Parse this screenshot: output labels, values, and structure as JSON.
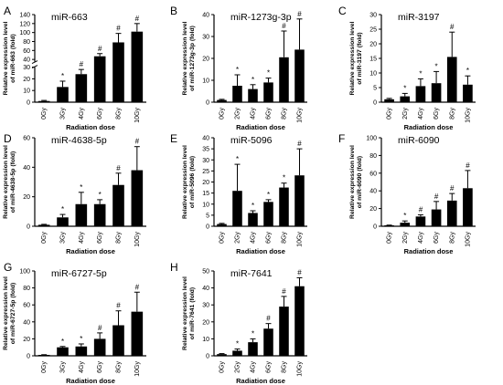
{
  "chart_data": [
    {
      "type": "bar",
      "panel_letter": "A",
      "title": "miR-663",
      "ylabel": "Relative expression level of miR-663 (fold)",
      "xlabel": "Radiation dose",
      "categories": [
        "0Gy",
        "3Gy",
        "4Gy",
        "6Gy",
        "8Gy",
        "10Gy"
      ],
      "values": [
        1,
        13,
        24,
        47,
        78,
        102
      ],
      "errors": [
        0.5,
        5,
        4,
        6,
        20,
        18
      ],
      "markers": [
        "",
        "*",
        "#",
        "#",
        "#",
        "#"
      ],
      "y_axis_break": true,
      "yticks_lower": [
        "0",
        "10",
        "20",
        "30"
      ],
      "yticks_upper": [
        "40",
        "60",
        "80",
        "100",
        "120",
        "140"
      ],
      "ylim_lower": [
        0,
        30
      ],
      "ylim_upper": [
        35,
        140
      ]
    },
    {
      "type": "bar",
      "panel_letter": "B",
      "title": "miR-1273g-3p",
      "ylabel": "Relative expression level of miR-1273g-3p (fold)",
      "xlabel": "Radiation dose",
      "categories": [
        "0Gy",
        "2Gy",
        "4Gy",
        "6Gy",
        "8Gy",
        "10Gy"
      ],
      "values": [
        1,
        7.5,
        6,
        9,
        20.5,
        24
      ],
      "errors": [
        0.3,
        5,
        2,
        2,
        12,
        14
      ],
      "markers": [
        "",
        "*",
        "*",
        "*",
        "#",
        "#"
      ],
      "yticks": [
        "0",
        "10",
        "20",
        "30",
        "40"
      ],
      "ylim": [
        0,
        40
      ]
    },
    {
      "type": "bar",
      "panel_letter": "C",
      "title": "miR-3197",
      "ylabel": "Relative expression level of miR-3197 (fold)",
      "xlabel": "Radiation dose",
      "categories": [
        "0Gy",
        "2Gy",
        "4Gy",
        "6Gy",
        "8Gy",
        "10Gy"
      ],
      "values": [
        1,
        2,
        5.5,
        6.5,
        15.5,
        6
      ],
      "errors": [
        0.3,
        1,
        2.5,
        4,
        8.5,
        3
      ],
      "markers": [
        "",
        "*",
        "*",
        "*",
        "#",
        "*"
      ],
      "yticks": [
        "0",
        "5",
        "10",
        "15",
        "20",
        "25",
        "30"
      ],
      "ylim": [
        0,
        30
      ]
    },
    {
      "type": "bar",
      "panel_letter": "D",
      "title": "miR-4638-5p",
      "ylabel": "Relative expression level of miR-4638-5p (fold)",
      "xlabel": "Radiation dose",
      "categories": [
        "0Gy",
        "3Gy",
        "4Gy",
        "6Gy",
        "8Gy",
        "10Gy"
      ],
      "values": [
        1,
        6,
        15,
        15,
        28,
        38
      ],
      "errors": [
        0.3,
        2,
        8,
        3,
        8,
        16
      ],
      "markers": [
        "",
        "*",
        "*",
        "*",
        "#",
        "#"
      ],
      "yticks": [
        "0",
        "20",
        "40",
        "60"
      ],
      "ylim": [
        0,
        60
      ]
    },
    {
      "type": "bar",
      "panel_letter": "E",
      "title": "miR-5096",
      "ylabel": "Relative expression level of miR-5096 (fold)",
      "xlabel": "Radiation dose",
      "categories": [
        "0Gy",
        "2Gy",
        "4Gy",
        "6Gy",
        "8Gy",
        "10Gy"
      ],
      "values": [
        1,
        16,
        6,
        11,
        17.5,
        23
      ],
      "errors": [
        0.3,
        12,
        1,
        1,
        2,
        12
      ],
      "markers": [
        "",
        "*",
        "*",
        "*",
        "*",
        "#"
      ],
      "yticks": [
        "0",
        "5",
        "10",
        "15",
        "20",
        "25",
        "30",
        "35",
        "40"
      ],
      "ylim": [
        0,
        40
      ]
    },
    {
      "type": "bar",
      "panel_letter": "F",
      "title": "miR-6090",
      "ylabel": "Relative expression level of miR-6090 (fold)",
      "xlabel": "Radiation dose",
      "categories": [
        "0Gy",
        "2Gy",
        "4Gy",
        "6Gy",
        "8Gy",
        "10Gy"
      ],
      "values": [
        1,
        4,
        11,
        19,
        29,
        43
      ],
      "errors": [
        0.3,
        2,
        2,
        9,
        8,
        20
      ],
      "markers": [
        "",
        "*",
        "#",
        "#",
        "#",
        "#"
      ],
      "yticks": [
        "0",
        "20",
        "40",
        "60",
        "80",
        "100"
      ],
      "ylim": [
        0,
        100
      ]
    },
    {
      "type": "bar",
      "panel_letter": "G",
      "title": "miR-6727-5p",
      "ylabel": "Relative expression level of miR-6727-5p (fold)",
      "xlabel": "Radiation dose",
      "categories": [
        "0Gy",
        "3Gy",
        "4Gy",
        "6Gy",
        "8Gy",
        "10Gy"
      ],
      "values": [
        1,
        10,
        11,
        20,
        36,
        52
      ],
      "errors": [
        0.3,
        1,
        3,
        7,
        17,
        23
      ],
      "markers": [
        "",
        "*",
        "*",
        "#",
        "#",
        "#"
      ],
      "yticks": [
        "0",
        "20",
        "40",
        "60",
        "80",
        "100"
      ],
      "ylim": [
        0,
        100
      ]
    },
    {
      "type": "bar",
      "panel_letter": "H",
      "title": "miR-7641",
      "ylabel": "Relative expression level of miR-7641 (fold)",
      "xlabel": "Radiation dose",
      "categories": [
        "0Gy",
        "2Gy",
        "4Gy",
        "6Gy",
        "8Gy",
        "10Gy"
      ],
      "values": [
        1,
        3,
        8,
        16,
        29,
        41
      ],
      "errors": [
        0.3,
        1,
        2,
        3,
        6,
        5
      ],
      "markers": [
        "",
        "*",
        "*",
        "#",
        "#",
        "#"
      ],
      "yticks": [
        "0",
        "10",
        "20",
        "30",
        "40",
        "50"
      ],
      "ylim": [
        0,
        50
      ]
    }
  ],
  "colors": {
    "bar": "#000000",
    "axis": "#000000",
    "background": "#ffffff"
  }
}
